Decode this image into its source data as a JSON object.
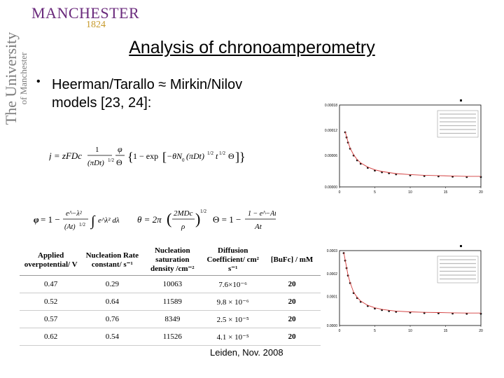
{
  "branding": {
    "logo_name": "MANCHESTER",
    "logo_year": "1824",
    "side_line1": "The University",
    "side_line2": "of Manchester"
  },
  "slide": {
    "title": "Analysis of chronoamperometry",
    "bullet_line1": "Heerman/Tarallo ≈ Mirkin/Nilov",
    "bullet_line2": "models [23, 24]:"
  },
  "formulas": {
    "main": "j = zFDc · (1/(πDt)^1/2) · (φ/Θ) · {1 − exp[−θN₀(πDt)^1/2 t^1/2 Θ]}",
    "phi": "φ = 1 − (e^(−λ²)/λ) ∫₀^λ e^(λ²) dλ",
    "theta_small": "θ = 2π (2MDc/ρ)^1/2",
    "theta_big": "Θ = 1 − (1 − e^(−At))/(At)"
  },
  "chart_data": [
    {
      "type": "scatter",
      "title": "",
      "xlabel": "",
      "ylabel": "",
      "xticks": [
        "0",
        "5",
        "10",
        "15",
        "20"
      ],
      "yticks": [
        "0.00018",
        "0.00012",
        "0.00006",
        "0.00000"
      ],
      "xlim": [
        0,
        20
      ],
      "ylim": [
        0,
        0.00024
      ],
      "legend_placement": "top-right",
      "series": [
        {
          "x": [
            0.8,
            1,
            1.2,
            1.5,
            2,
            2.5,
            3,
            4,
            5,
            6,
            7,
            8,
            10,
            12,
            14,
            16,
            18,
            20
          ],
          "y": [
            0.00016,
            0.000145,
            0.00013,
            0.000112,
            9.2e-05,
            7.8e-05,
            6.8e-05,
            5.6e-05,
            4.8e-05,
            4.3e-05,
            4e-05,
            3.7e-05,
            3.4e-05,
            3.2e-05,
            3.1e-05,
            3e-05,
            2.9e-05,
            2.9e-05
          ]
        }
      ]
    },
    {
      "type": "scatter",
      "title": "",
      "xlabel": "",
      "ylabel": "",
      "xticks": [
        "0",
        "5",
        "10",
        "15",
        "20"
      ],
      "yticks": [
        "0.0003",
        "0.0002",
        "0.0001",
        "0.0000"
      ],
      "xlim": [
        0,
        20
      ],
      "ylim": [
        0,
        0.0003
      ],
      "legend_placement": "top-right",
      "series": [
        {
          "x": [
            0.6,
            0.8,
            1,
            1.2,
            1.5,
            2,
            2.5,
            3,
            4,
            5,
            6,
            7,
            8,
            10,
            12,
            14,
            16,
            18,
            20
          ],
          "y": [
            0.00029,
            0.00026,
            0.00023,
            0.0002,
            0.00017,
            0.00013,
            0.00011,
            9.5e-05,
            7.8e-05,
            6.8e-05,
            6.2e-05,
            5.8e-05,
            5.5e-05,
            5.2e-05,
            5e-05,
            4.9e-05,
            4.8e-05,
            4.7e-05,
            4.7e-05
          ]
        }
      ]
    }
  ],
  "table": {
    "headers": [
      "Applied overpotential/ V",
      "Nucleation Rate constant/ s⁻¹",
      "Nucleation saturation density /cm⁻²",
      "Diffusion Coefficient/ cm² s⁻¹",
      "[BuFc] / mM"
    ],
    "rows": [
      [
        "0.47",
        "0.29",
        "10063",
        "7.6×10⁻⁶",
        "20"
      ],
      [
        "0.52",
        "0.64",
        "11589",
        "9.8 × 10⁻⁶",
        "20"
      ],
      [
        "0.57",
        "0.76",
        "8349",
        "2.5 × 10⁻⁵",
        "20"
      ],
      [
        "0.62",
        "0.54",
        "11526",
        "4.1 × 10⁻⁵",
        "20"
      ]
    ]
  },
  "footer": "Leiden, Nov. 2008",
  "colors": {
    "brand_purple": "#6a2a7c",
    "brand_gold": "#c79a2c",
    "fit_red": "#d23a3a",
    "data_black": "#111111"
  }
}
